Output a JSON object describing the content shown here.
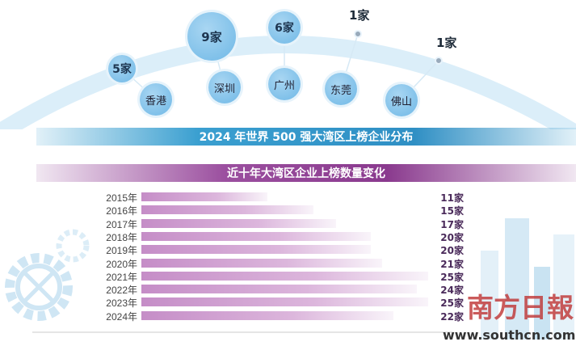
{
  "top_section": {
    "title": "2024 年世界 500 强大湾区上榜企业分布",
    "cities": [
      {
        "name": "香港",
        "count_label": "5家",
        "count": 5
      },
      {
        "name": "深圳",
        "count_label": "9家",
        "count": 9
      },
      {
        "name": "广州",
        "count_label": "6家",
        "count": 6
      },
      {
        "name": "东莞",
        "count_label": "1家",
        "count": 1
      },
      {
        "name": "佛山",
        "count_label": "1家",
        "count": 1
      }
    ]
  },
  "watermark": {
    "brand": "南方日报",
    "url": "www.southcn.com"
  },
  "colors": {
    "blue_banner": "#3a9fd0",
    "purple_banner": "#8a3a8e",
    "bar": "#c58dc7"
  },
  "chart_data": {
    "type": "bar",
    "orientation": "horizontal",
    "title": "近十年大湾区企业上榜数量变化",
    "categories": [
      "2015年",
      "2016年",
      "2017年",
      "2018年",
      "2019年",
      "2020年",
      "2021年",
      "2022年",
      "2023年",
      "2024年"
    ],
    "values": [
      11,
      15,
      17,
      20,
      20,
      21,
      25,
      24,
      25,
      22
    ],
    "value_labels": [
      "11家",
      "15家",
      "17家",
      "20家",
      "20家",
      "21家",
      "25家",
      "24家",
      "25家",
      "22家"
    ],
    "xlim": [
      0,
      25
    ],
    "grid": false
  }
}
